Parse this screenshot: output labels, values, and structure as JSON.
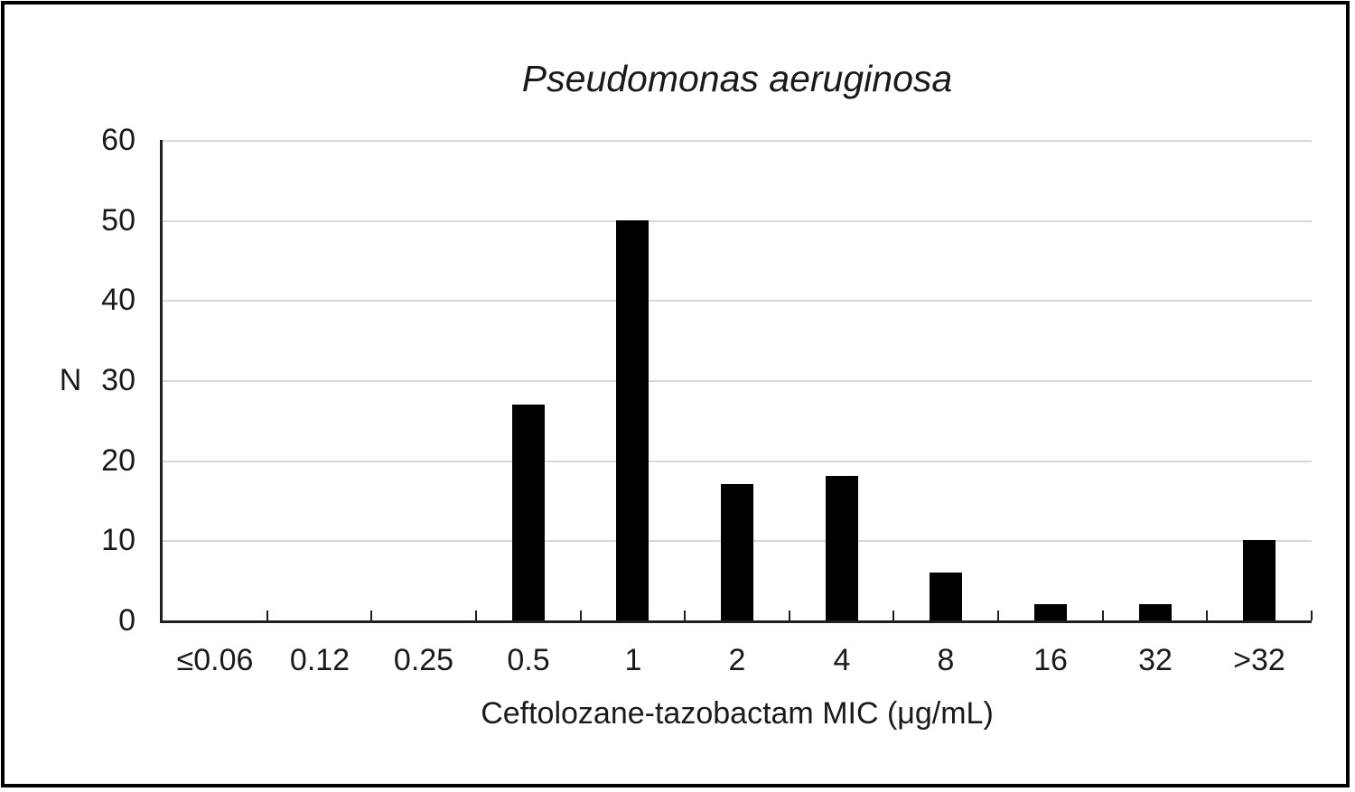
{
  "chart_data": {
    "type": "bar",
    "title": "Pseudomonas aeruginosa",
    "title_style": "italic",
    "categories": [
      "≤0.06",
      "0.12",
      "0.25",
      "0.5",
      "1",
      "2",
      "4",
      "8",
      "16",
      "32",
      ">32"
    ],
    "values": [
      0,
      0,
      0,
      27,
      50,
      17,
      18,
      6,
      2,
      2,
      10
    ],
    "xlabel": "Ceftolozane-tazobactam MIC (μg/mL)",
    "ylabel": "N",
    "ylim": [
      0,
      60
    ],
    "ytick_step": 10,
    "yticks": [
      0,
      10,
      20,
      30,
      40,
      50,
      60
    ],
    "grid": "horizontal",
    "legend": "none",
    "bar_color": "#000000",
    "gridline_color": "#d9d9d9",
    "axis_color": "#1f1f1f",
    "background_color": "#ffffff",
    "frame_color": "#000000"
  }
}
